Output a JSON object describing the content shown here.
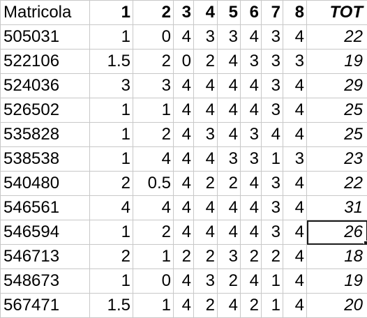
{
  "sheet": {
    "header": {
      "id_label": "Matricola",
      "columns": [
        "1",
        "2",
        "3",
        "4",
        "5",
        "6",
        "7",
        "8"
      ],
      "total_label": "TOT"
    },
    "rows": [
      {
        "id": "505031",
        "scores": [
          "1",
          "0",
          "4",
          "3",
          "3",
          "4",
          "3",
          "4"
        ],
        "total": "22"
      },
      {
        "id": "522106",
        "scores": [
          "1.5",
          "2",
          "0",
          "2",
          "4",
          "3",
          "3",
          "3"
        ],
        "total": "19"
      },
      {
        "id": "524036",
        "scores": [
          "3",
          "3",
          "4",
          "4",
          "4",
          "4",
          "3",
          "4"
        ],
        "total": "29"
      },
      {
        "id": "526502",
        "scores": [
          "1",
          "1",
          "4",
          "4",
          "4",
          "4",
          "3",
          "4"
        ],
        "total": "25"
      },
      {
        "id": "535828",
        "scores": [
          "1",
          "2",
          "4",
          "3",
          "4",
          "3",
          "4",
          "4"
        ],
        "total": "25"
      },
      {
        "id": "538538",
        "scores": [
          "1",
          "4",
          "4",
          "4",
          "3",
          "3",
          "1",
          "3"
        ],
        "total": "23"
      },
      {
        "id": "540480",
        "scores": [
          "2",
          "0.5",
          "4",
          "2",
          "2",
          "4",
          "3",
          "4"
        ],
        "total": "22"
      },
      {
        "id": "546561",
        "scores": [
          "4",
          "4",
          "4",
          "4",
          "4",
          "4",
          "3",
          "4"
        ],
        "total": "31"
      },
      {
        "id": "546594",
        "scores": [
          "1",
          "2",
          "4",
          "4",
          "4",
          "4",
          "3",
          "4"
        ],
        "total": "26"
      },
      {
        "id": "546713",
        "scores": [
          "2",
          "1",
          "2",
          "2",
          "3",
          "2",
          "2",
          "4"
        ],
        "total": "18"
      },
      {
        "id": "548673",
        "scores": [
          "1",
          "0",
          "4",
          "3",
          "2",
          "4",
          "1",
          "4"
        ],
        "total": "19"
      },
      {
        "id": "567471",
        "scores": [
          "1.5",
          "1",
          "4",
          "2",
          "4",
          "2",
          "1",
          "4"
        ],
        "total": "20"
      }
    ],
    "selected": {
      "row": 8,
      "column": "total"
    },
    "colors": {
      "gridline": "#c8c8c8",
      "selection_border": "#1a1a1a",
      "text": "#000000",
      "background": "#ffffff"
    }
  }
}
